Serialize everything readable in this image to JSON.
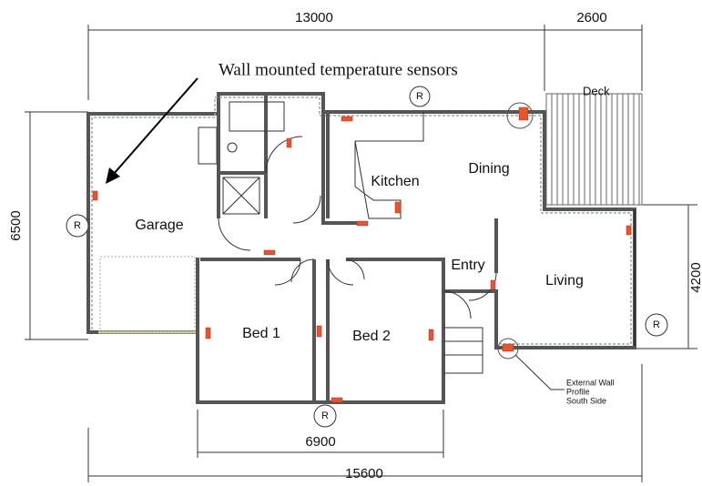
{
  "annotation": "Wall mounted temperature sensors",
  "dimensions": {
    "top_main": "13000",
    "top_deck": "2600",
    "left": "6500",
    "right": "4200",
    "bottom_inner": "6900",
    "bottom_total": "15600"
  },
  "rooms": [
    "Garage",
    "Kitchen",
    "Dining",
    "Entry",
    "Living",
    "Bed 1",
    "Bed 2",
    "Deck"
  ],
  "markers": [
    "R",
    "R",
    "R",
    "R",
    "R"
  ],
  "wall_note": [
    "External Wall",
    "Profile",
    "South Side"
  ]
}
